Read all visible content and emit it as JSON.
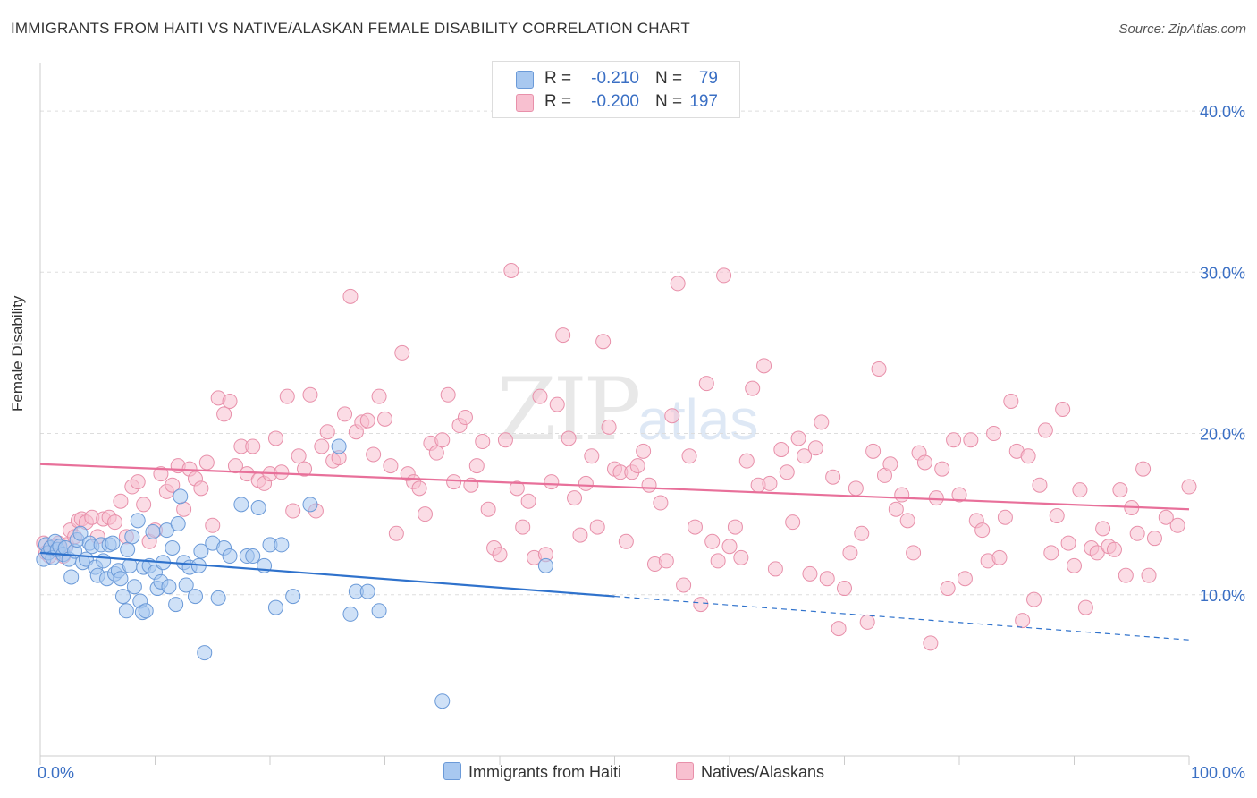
{
  "header": {
    "title": "IMMIGRANTS FROM HAITI VS NATIVE/ALASKAN FEMALE DISABILITY CORRELATION CHART",
    "source": "Source: ZipAtlas.com"
  },
  "legend_top": {
    "rows": [
      {
        "r_label": "R =",
        "r_value": "-0.210",
        "n_label": "N =",
        "n_value": "79",
        "color": "#a8c8f0",
        "border": "#6b9ad8"
      },
      {
        "r_label": "R =",
        "r_value": "-0.200",
        "n_label": "N =",
        "n_value": "197",
        "color": "#f8c0d0",
        "border": "#e890aa"
      }
    ]
  },
  "watermark": {
    "zip": "ZIP",
    "atlas": "atlas"
  },
  "chart_data": {
    "type": "scatter",
    "title": "IMMIGRANTS FROM HAITI VS NATIVE/ALASKAN FEMALE DISABILITY CORRELATION CHART",
    "xlabel": "",
    "ylabel": "Female Disability",
    "xlim": [
      0,
      100
    ],
    "ylim": [
      0,
      43
    ],
    "x_tick_labels": [
      {
        "value": 0,
        "label": "0.0%"
      },
      {
        "value": 100,
        "label": "100.0%"
      }
    ],
    "y_ticks": [
      {
        "value": 10,
        "label": "10.0%"
      },
      {
        "value": 20,
        "label": "20.0%"
      },
      {
        "value": 30,
        "label": "30.0%"
      },
      {
        "value": 40,
        "label": "40.0%"
      }
    ],
    "x_minor_ticks": [
      0,
      10,
      20,
      30,
      40,
      50,
      60,
      70,
      80,
      90,
      100
    ],
    "grid": true,
    "legend": "bottom-center",
    "series": [
      {
        "name": "Immigrants from Haiti",
        "color": "#a8c8f0",
        "stroke": "#6b9ad8",
        "trend_color": "#2f72cc",
        "trend": {
          "x0": 0,
          "y0": 12.6,
          "x1": 50,
          "y1": 9.9,
          "dash_to_x": 100,
          "dash_to_y": 7.2
        },
        "points": [
          [
            0.3,
            12.2
          ],
          [
            0.5,
            13.1
          ],
          [
            0.7,
            12.6
          ],
          [
            0.9,
            12.9
          ],
          [
            1.1,
            12.3
          ],
          [
            1.3,
            13.3
          ],
          [
            1.5,
            12.8
          ],
          [
            1.7,
            13.0
          ],
          [
            2.0,
            12.5
          ],
          [
            2.2,
            12.9
          ],
          [
            2.5,
            12.2
          ],
          [
            2.7,
            11.1
          ],
          [
            3.0,
            12.7
          ],
          [
            3.2,
            13.4
          ],
          [
            3.5,
            13.8
          ],
          [
            3.7,
            12.0
          ],
          [
            4.0,
            12.2
          ],
          [
            4.3,
            13.2
          ],
          [
            4.5,
            13.0
          ],
          [
            4.8,
            11.7
          ],
          [
            5.0,
            11.2
          ],
          [
            5.3,
            13.1
          ],
          [
            5.5,
            12.1
          ],
          [
            5.8,
            11.0
          ],
          [
            6.0,
            13.1
          ],
          [
            6.3,
            13.2
          ],
          [
            6.5,
            11.3
          ],
          [
            6.8,
            11.5
          ],
          [
            7.0,
            11.0
          ],
          [
            7.2,
            9.9
          ],
          [
            7.5,
            9.0
          ],
          [
            7.6,
            12.8
          ],
          [
            7.8,
            11.8
          ],
          [
            8.0,
            13.6
          ],
          [
            8.2,
            10.5
          ],
          [
            8.5,
            14.6
          ],
          [
            8.7,
            9.6
          ],
          [
            8.9,
            8.9
          ],
          [
            9.0,
            11.7
          ],
          [
            9.2,
            9.0
          ],
          [
            9.5,
            11.8
          ],
          [
            9.8,
            13.9
          ],
          [
            10.0,
            11.4
          ],
          [
            10.2,
            10.4
          ],
          [
            10.5,
            10.8
          ],
          [
            10.7,
            12.0
          ],
          [
            11.0,
            14.0
          ],
          [
            11.2,
            10.5
          ],
          [
            11.5,
            12.9
          ],
          [
            11.8,
            9.4
          ],
          [
            12.0,
            14.4
          ],
          [
            12.2,
            16.1
          ],
          [
            12.5,
            12.0
          ],
          [
            12.7,
            10.6
          ],
          [
            13.0,
            11.7
          ],
          [
            13.5,
            9.9
          ],
          [
            13.8,
            11.8
          ],
          [
            14.0,
            12.7
          ],
          [
            14.3,
            6.4
          ],
          [
            15.0,
            13.2
          ],
          [
            15.5,
            9.8
          ],
          [
            16.0,
            12.9
          ],
          [
            16.5,
            12.4
          ],
          [
            17.5,
            15.6
          ],
          [
            18.0,
            12.4
          ],
          [
            18.5,
            12.4
          ],
          [
            19.0,
            15.4
          ],
          [
            19.5,
            11.8
          ],
          [
            20.0,
            13.1
          ],
          [
            20.5,
            9.2
          ],
          [
            21.0,
            13.1
          ],
          [
            22.0,
            9.9
          ],
          [
            23.5,
            15.6
          ],
          [
            26.0,
            19.2
          ],
          [
            27.0,
            8.8
          ],
          [
            27.5,
            10.2
          ],
          [
            28.5,
            10.2
          ],
          [
            29.5,
            9.0
          ],
          [
            35.0,
            3.4
          ],
          [
            44.0,
            11.8
          ]
        ]
      },
      {
        "name": "Natives/Alaskans",
        "color": "#f8c0d0",
        "stroke": "#e890aa",
        "trend_color": "#e8709a",
        "trend": {
          "x0": 0,
          "y0": 18.1,
          "x1": 100,
          "y1": 15.3
        },
        "points": [
          [
            0.3,
            13.2
          ],
          [
            0.5,
            12.6
          ],
          [
            0.8,
            12.4
          ],
          [
            1.0,
            13.0
          ],
          [
            1.3,
            12.8
          ],
          [
            1.6,
            13.2
          ],
          [
            2.0,
            12.4
          ],
          [
            2.3,
            13.1
          ],
          [
            2.6,
            14.0
          ],
          [
            3.0,
            13.6
          ],
          [
            3.3,
            14.6
          ],
          [
            3.6,
            14.7
          ],
          [
            4.0,
            14.5
          ],
          [
            4.5,
            14.8
          ],
          [
            5.0,
            13.6
          ],
          [
            5.5,
            14.7
          ],
          [
            6.0,
            14.8
          ],
          [
            6.5,
            14.5
          ],
          [
            7.0,
            15.8
          ],
          [
            7.5,
            13.6
          ],
          [
            8.0,
            16.7
          ],
          [
            8.5,
            17.0
          ],
          [
            9.0,
            15.6
          ],
          [
            9.5,
            13.3
          ],
          [
            10.0,
            14.0
          ],
          [
            10.5,
            17.5
          ],
          [
            11.0,
            16.4
          ],
          [
            11.5,
            16.8
          ],
          [
            12.0,
            18.0
          ],
          [
            12.5,
            15.3
          ],
          [
            13.0,
            17.8
          ],
          [
            13.5,
            17.2
          ],
          [
            14.0,
            16.6
          ],
          [
            14.5,
            18.2
          ],
          [
            15.0,
            14.3
          ],
          [
            15.5,
            22.2
          ],
          [
            16.0,
            21.2
          ],
          [
            16.5,
            22.0
          ],
          [
            17.0,
            18.0
          ],
          [
            17.5,
            19.2
          ],
          [
            18.0,
            17.5
          ],
          [
            18.5,
            19.2
          ],
          [
            19.0,
            17.1
          ],
          [
            19.5,
            16.9
          ],
          [
            20.0,
            17.5
          ],
          [
            20.5,
            19.7
          ],
          [
            21.0,
            17.6
          ],
          [
            21.5,
            22.3
          ],
          [
            22.0,
            15.2
          ],
          [
            22.5,
            18.6
          ],
          [
            23.0,
            17.8
          ],
          [
            23.5,
            22.4
          ],
          [
            24.0,
            15.2
          ],
          [
            24.5,
            19.2
          ],
          [
            25.0,
            20.1
          ],
          [
            25.5,
            18.3
          ],
          [
            26.0,
            18.5
          ],
          [
            26.5,
            21.2
          ],
          [
            27.0,
            28.5
          ],
          [
            27.5,
            20.1
          ],
          [
            28.0,
            20.7
          ],
          [
            28.5,
            20.8
          ],
          [
            29.0,
            18.7
          ],
          [
            29.5,
            22.3
          ],
          [
            30.0,
            20.9
          ],
          [
            30.5,
            18.0
          ],
          [
            31.0,
            13.8
          ],
          [
            31.5,
            25.0
          ],
          [
            32.0,
            17.5
          ],
          [
            32.5,
            17.0
          ],
          [
            33.0,
            16.6
          ],
          [
            33.5,
            15.0
          ],
          [
            34.0,
            19.4
          ],
          [
            34.5,
            18.8
          ],
          [
            35.0,
            19.6
          ],
          [
            35.5,
            22.4
          ],
          [
            36.0,
            17.0
          ],
          [
            36.5,
            20.5
          ],
          [
            37.0,
            21.0
          ],
          [
            37.5,
            16.8
          ],
          [
            38.0,
            18.0
          ],
          [
            38.5,
            19.5
          ],
          [
            39.0,
            15.3
          ],
          [
            39.5,
            12.9
          ],
          [
            40.0,
            12.5
          ],
          [
            40.5,
            19.6
          ],
          [
            41.0,
            30.1
          ],
          [
            41.5,
            16.6
          ],
          [
            42.0,
            14.2
          ],
          [
            42.5,
            15.8
          ],
          [
            43.0,
            12.3
          ],
          [
            43.5,
            22.3
          ],
          [
            44.0,
            12.5
          ],
          [
            44.5,
            17.0
          ],
          [
            45.0,
            21.8
          ],
          [
            45.5,
            26.1
          ],
          [
            46.0,
            19.7
          ],
          [
            46.5,
            16.0
          ],
          [
            47.0,
            13.7
          ],
          [
            47.5,
            16.9
          ],
          [
            48.0,
            18.6
          ],
          [
            48.5,
            14.2
          ],
          [
            49.0,
            25.7
          ],
          [
            49.5,
            20.4
          ],
          [
            50.0,
            17.8
          ],
          [
            50.5,
            17.6
          ],
          [
            51.0,
            13.3
          ],
          [
            51.5,
            17.6
          ],
          [
            52.0,
            18.0
          ],
          [
            52.5,
            18.9
          ],
          [
            53.0,
            16.8
          ],
          [
            53.5,
            11.9
          ],
          [
            54.0,
            15.7
          ],
          [
            54.5,
            12.1
          ],
          [
            55.0,
            21.1
          ],
          [
            55.5,
            29.3
          ],
          [
            56.0,
            10.6
          ],
          [
            56.5,
            18.6
          ],
          [
            57.0,
            14.2
          ],
          [
            57.5,
            9.4
          ],
          [
            58.0,
            23.1
          ],
          [
            58.5,
            13.3
          ],
          [
            59.0,
            12.1
          ],
          [
            59.5,
            29.8
          ],
          [
            60.0,
            13.0
          ],
          [
            60.5,
            14.2
          ],
          [
            61.0,
            12.3
          ],
          [
            61.5,
            18.3
          ],
          [
            62.0,
            22.8
          ],
          [
            62.5,
            16.8
          ],
          [
            63.0,
            24.2
          ],
          [
            63.5,
            16.9
          ],
          [
            64.0,
            11.6
          ],
          [
            64.5,
            19.0
          ],
          [
            65.0,
            17.6
          ],
          [
            65.5,
            14.5
          ],
          [
            66.0,
            19.7
          ],
          [
            66.5,
            18.6
          ],
          [
            67.0,
            11.3
          ],
          [
            67.5,
            19.1
          ],
          [
            68.0,
            20.7
          ],
          [
            68.5,
            11.0
          ],
          [
            69.0,
            17.3
          ],
          [
            69.5,
            7.9
          ],
          [
            70.0,
            10.4
          ],
          [
            70.5,
            12.6
          ],
          [
            71.0,
            16.6
          ],
          [
            71.5,
            13.8
          ],
          [
            72.0,
            8.3
          ],
          [
            72.5,
            18.9
          ],
          [
            73.0,
            24.0
          ],
          [
            73.5,
            17.4
          ],
          [
            74.0,
            18.1
          ],
          [
            74.5,
            15.3
          ],
          [
            75.0,
            16.2
          ],
          [
            75.5,
            14.6
          ],
          [
            76.0,
            12.6
          ],
          [
            76.5,
            18.8
          ],
          [
            77.0,
            18.2
          ],
          [
            77.5,
            7.0
          ],
          [
            78.0,
            16.0
          ],
          [
            78.5,
            17.8
          ],
          [
            79.0,
            10.4
          ],
          [
            79.5,
            19.6
          ],
          [
            80.0,
            16.2
          ],
          [
            80.5,
            11.0
          ],
          [
            81.0,
            19.6
          ],
          [
            81.5,
            14.6
          ],
          [
            82.0,
            14.0
          ],
          [
            82.5,
            12.1
          ],
          [
            83.0,
            20.0
          ],
          [
            83.5,
            12.3
          ],
          [
            84.0,
            14.8
          ],
          [
            84.5,
            22.0
          ],
          [
            85.0,
            18.9
          ],
          [
            85.5,
            8.4
          ],
          [
            86.0,
            18.6
          ],
          [
            86.5,
            9.7
          ],
          [
            87.0,
            16.8
          ],
          [
            87.5,
            20.2
          ],
          [
            88.0,
            12.6
          ],
          [
            88.5,
            14.9
          ],
          [
            89.0,
            21.5
          ],
          [
            89.5,
            13.2
          ],
          [
            90.0,
            11.8
          ],
          [
            90.5,
            16.5
          ],
          [
            91.0,
            9.2
          ],
          [
            91.5,
            12.9
          ],
          [
            92.0,
            12.6
          ],
          [
            92.5,
            14.1
          ],
          [
            93.0,
            13.0
          ],
          [
            93.5,
            12.8
          ],
          [
            94.0,
            16.5
          ],
          [
            94.5,
            11.2
          ],
          [
            95.0,
            15.4
          ],
          [
            95.5,
            13.8
          ],
          [
            96.0,
            17.8
          ],
          [
            96.5,
            11.2
          ],
          [
            97.0,
            13.5
          ],
          [
            98.0,
            14.8
          ],
          [
            99.0,
            14.3
          ],
          [
            100.0,
            16.7
          ]
        ]
      }
    ]
  },
  "legend_bottom": [
    {
      "label": "Immigrants from Haiti",
      "color": "#a8c8f0",
      "border": "#6b9ad8"
    },
    {
      "label": "Natives/Alaskans",
      "color": "#f8c0d0",
      "border": "#e890aa"
    }
  ]
}
